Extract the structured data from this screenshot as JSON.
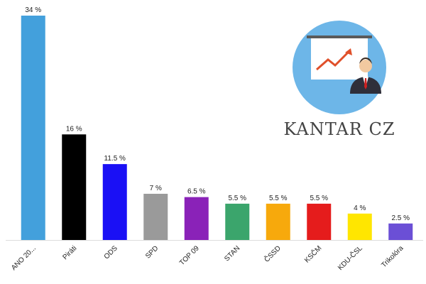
{
  "chart_data": {
    "type": "bar",
    "logo_text": "KANTAR CZ",
    "categories": [
      "ANO 20...",
      "Piráti",
      "ODS",
      "SPD",
      "TOP 09",
      "STAN",
      "ČSSD",
      "KSČM",
      "KDU-ČSL",
      "Trikolóra"
    ],
    "values": [
      34,
      16,
      11.5,
      7,
      6.5,
      5.5,
      5.5,
      5.5,
      4,
      2.5
    ],
    "value_labels": [
      "34 %",
      "16 %",
      "11.5 %",
      "7 %",
      "6.5 %",
      "5.5 %",
      "5.5 %",
      "5.5 %",
      "4 %",
      "2.5 %"
    ],
    "colors": [
      "#43a0dc",
      "#000000",
      "#1a10f5",
      "#9a9a9a",
      "#8a22b8",
      "#3ba56c",
      "#f7a90c",
      "#e51c1c",
      "#ffe600",
      "#6b4fd6"
    ]
  }
}
